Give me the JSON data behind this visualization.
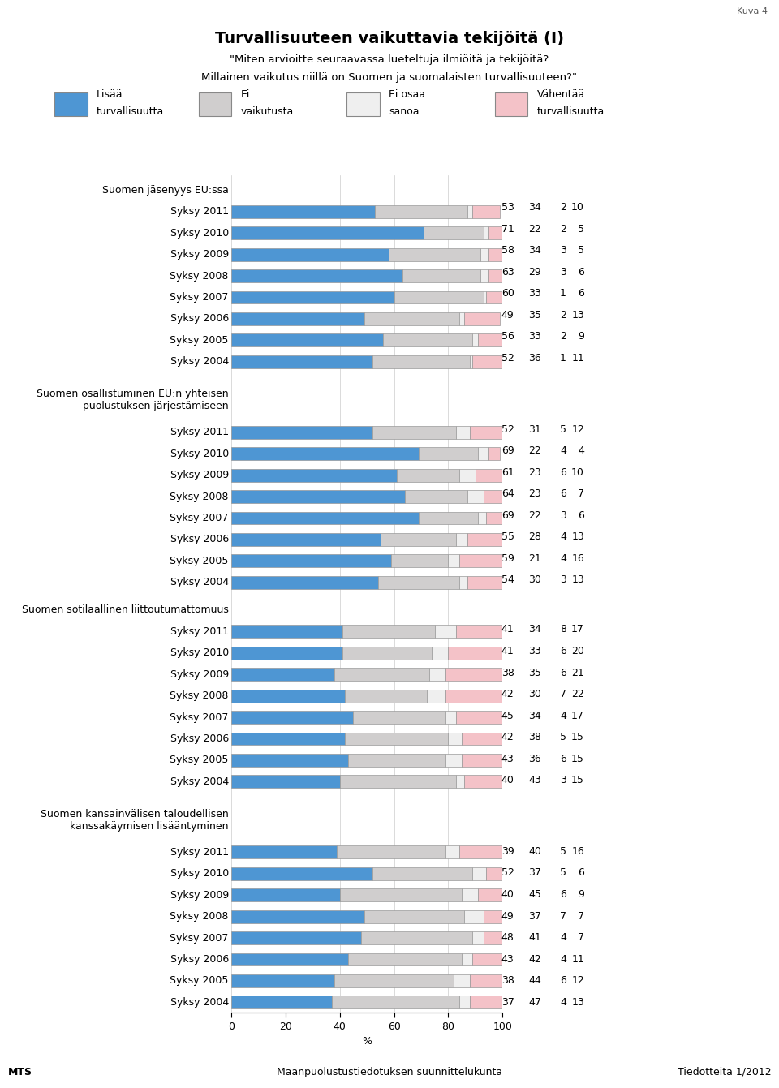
{
  "title": "Turvallisuuteen vaikuttavia tekijöitä (I)",
  "subtitle1": "\"Miten arvioitte seuraavassa lueteltuja ilmiöitä ja tekijöitä?",
  "subtitle2": "Millainen vaikutus niillä on Suomen ja suomalaisten turvallisuuteen?\"",
  "legend_labels": [
    "Lisää\nturvallisuutta",
    "Ei\nvaikutusta",
    "Ei osaa\nsanoa",
    "Vähentää\nturvallisuutta"
  ],
  "colors": [
    "#4E96D3",
    "#D0CECE",
    "#EFEFEF",
    "#F4C2C8"
  ],
  "bar_edge_color": "#999999",
  "kuva_label": "Kuva 4",
  "footer_left": "MTS",
  "footer_center": "Maanpuolustustiedotuksen suunnittelukunta",
  "footer_right": "Tiedotteita 1/2012",
  "groups": [
    {
      "title": "Suomen jäsenyys EU:ssa",
      "title_lines": 1,
      "rows": [
        {
          "label": "Syksy 2011",
          "values": [
            53,
            34,
            2,
            10
          ]
        },
        {
          "label": "Syksy 2010",
          "values": [
            71,
            22,
            2,
            5
          ]
        },
        {
          "label": "Syksy 2009",
          "values": [
            58,
            34,
            3,
            5
          ]
        },
        {
          "label": "Syksy 2008",
          "values": [
            63,
            29,
            3,
            6
          ]
        },
        {
          "label": "Syksy 2007",
          "values": [
            60,
            33,
            1,
            6
          ]
        },
        {
          "label": "Syksy 2006",
          "values": [
            49,
            35,
            2,
            13
          ]
        },
        {
          "label": "Syksy 2005",
          "values": [
            56,
            33,
            2,
            9
          ]
        },
        {
          "label": "Syksy 2004",
          "values": [
            52,
            36,
            1,
            11
          ]
        }
      ]
    },
    {
      "title": "Suomen osallistuminen EU:n yhteisen\npuolustuksen järjestämiseen",
      "title_lines": 2,
      "rows": [
        {
          "label": "Syksy 2011",
          "values": [
            52,
            31,
            5,
            12
          ]
        },
        {
          "label": "Syksy 2010",
          "values": [
            69,
            22,
            4,
            4
          ]
        },
        {
          "label": "Syksy 2009",
          "values": [
            61,
            23,
            6,
            10
          ]
        },
        {
          "label": "Syksy 2008",
          "values": [
            64,
            23,
            6,
            7
          ]
        },
        {
          "label": "Syksy 2007",
          "values": [
            69,
            22,
            3,
            6
          ]
        },
        {
          "label": "Syksy 2006",
          "values": [
            55,
            28,
            4,
            13
          ]
        },
        {
          "label": "Syksy 2005",
          "values": [
            59,
            21,
            4,
            16
          ]
        },
        {
          "label": "Syksy 2004",
          "values": [
            54,
            30,
            3,
            13
          ]
        }
      ]
    },
    {
      "title": "Suomen sotilaallinen liittoutumattomuus",
      "title_lines": 1,
      "rows": [
        {
          "label": "Syksy 2011",
          "values": [
            41,
            34,
            8,
            17
          ]
        },
        {
          "label": "Syksy 2010",
          "values": [
            41,
            33,
            6,
            20
          ]
        },
        {
          "label": "Syksy 2009",
          "values": [
            38,
            35,
            6,
            21
          ]
        },
        {
          "label": "Syksy 2008",
          "values": [
            42,
            30,
            7,
            22
          ]
        },
        {
          "label": "Syksy 2007",
          "values": [
            45,
            34,
            4,
            17
          ]
        },
        {
          "label": "Syksy 2006",
          "values": [
            42,
            38,
            5,
            15
          ]
        },
        {
          "label": "Syksy 2005",
          "values": [
            43,
            36,
            6,
            15
          ]
        },
        {
          "label": "Syksy 2004",
          "values": [
            40,
            43,
            3,
            15
          ]
        }
      ]
    },
    {
      "title": "Suomen kansainvälisen taloudellisen\nkanssakäymisen lisääntyminen",
      "title_lines": 2,
      "rows": [
        {
          "label": "Syksy 2011",
          "values": [
            39,
            40,
            5,
            16
          ]
        },
        {
          "label": "Syksy 2010",
          "values": [
            52,
            37,
            5,
            6
          ]
        },
        {
          "label": "Syksy 2009",
          "values": [
            40,
            45,
            6,
            9
          ]
        },
        {
          "label": "Syksy 2008",
          "values": [
            49,
            37,
            7,
            7
          ]
        },
        {
          "label": "Syksy 2007",
          "values": [
            48,
            41,
            4,
            7
          ]
        },
        {
          "label": "Syksy 2006",
          "values": [
            43,
            42,
            4,
            11
          ]
        },
        {
          "label": "Syksy 2005",
          "values": [
            38,
            44,
            6,
            12
          ]
        },
        {
          "label": "Syksy 2004",
          "values": [
            37,
            47,
            4,
            13
          ]
        }
      ]
    }
  ]
}
